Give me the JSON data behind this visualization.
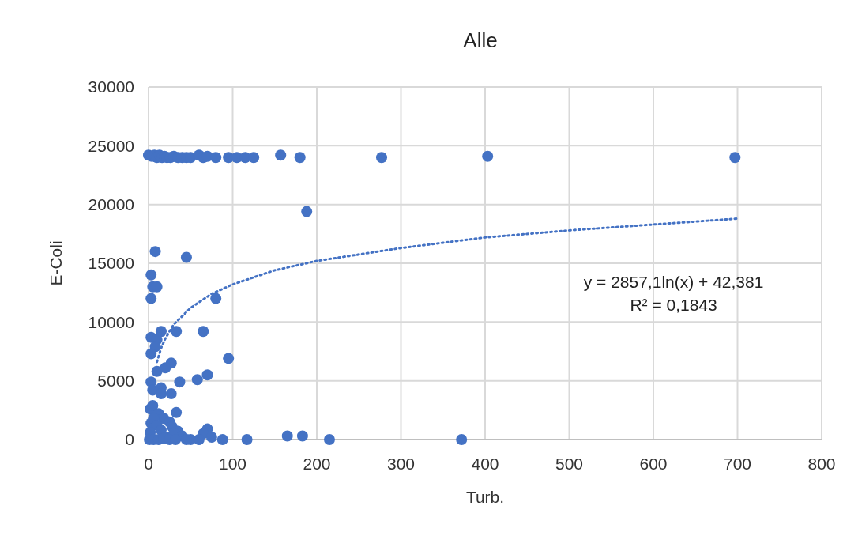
{
  "chart_data": {
    "type": "scatter",
    "title": "Alle",
    "xlabel": "Turb.",
    "ylabel": "E-Coli",
    "xlim": [
      0,
      800
    ],
    "ylim": [
      0,
      30000
    ],
    "xticks": [
      0,
      100,
      200,
      300,
      400,
      500,
      600,
      700,
      800
    ],
    "yticks": [
      0,
      5000,
      10000,
      15000,
      20000,
      25000,
      30000
    ],
    "grid": true,
    "marker": "circle",
    "annotations": [
      "y = 2857,1ln(x) + 42,381",
      "R² = 0,1843"
    ],
    "series": [
      {
        "color": "#4472c4",
        "x": [
          0,
          4,
          7,
          10,
          13,
          16,
          19,
          22,
          26,
          30,
          35,
          40,
          45,
          50,
          60,
          65,
          70,
          80,
          95,
          105,
          115,
          125,
          157,
          180,
          277,
          403,
          697,
          188,
          8,
          45,
          3,
          5,
          10,
          3,
          80,
          3,
          10,
          15,
          33,
          65,
          8,
          3,
          95,
          10,
          20,
          27,
          70,
          58,
          3,
          37,
          5,
          15,
          15,
          27,
          33,
          2,
          5,
          12,
          18,
          25,
          3,
          6,
          10,
          28,
          35,
          2,
          15,
          22,
          30,
          40,
          70,
          65,
          50,
          60,
          75,
          88,
          117,
          165,
          183,
          215,
          372,
          1,
          6,
          12,
          18,
          25,
          32,
          45
        ],
        "values": [
          24200,
          24100,
          24200,
          24000,
          24200,
          24000,
          24100,
          24000,
          24000,
          24100,
          24000,
          24000,
          24000,
          24000,
          24200,
          24000,
          24100,
          24000,
          24000,
          24000,
          24000,
          24000,
          24200,
          24000,
          24000,
          24100,
          24000,
          19400,
          16000,
          15500,
          14000,
          13000,
          13000,
          12000,
          12000,
          8700,
          8500,
          9200,
          9200,
          9200,
          7900,
          7300,
          6900,
          5800,
          6100,
          6500,
          5500,
          5100,
          4900,
          4900,
          4200,
          4400,
          3900,
          3900,
          2300,
          2600,
          2900,
          2200,
          1800,
          1500,
          1400,
          1800,
          1200,
          1100,
          700,
          600,
          800,
          200,
          500,
          300,
          900,
          500,
          0,
          0,
          200,
          0,
          0,
          300,
          300,
          0,
          0,
          0,
          0,
          0,
          100,
          0,
          0,
          0
        ]
      },
      {
        "type": "line",
        "color": "#4472c4",
        "line_style": "dotted",
        "marker": "none",
        "x": [
          10,
          15,
          20,
          30,
          50,
          75,
          100,
          150,
          200,
          300,
          400,
          500,
          600,
          700
        ],
        "values": [
          6600,
          7800,
          8600,
          9800,
          11200,
          12400,
          13200,
          14400,
          15200,
          16300,
          17200,
          17800,
          18300,
          18800
        ]
      }
    ]
  }
}
